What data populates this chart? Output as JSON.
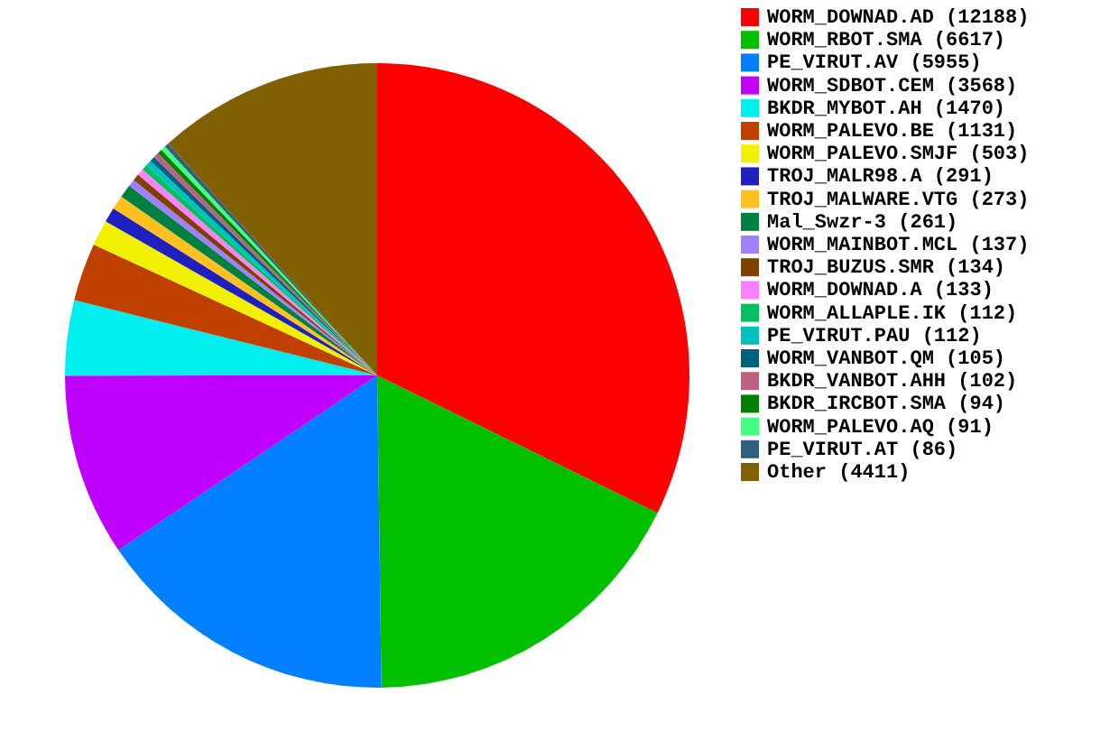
{
  "chart_data": {
    "type": "pie",
    "categories": [
      "WORM_DOWNAD.AD (12188)",
      "WORM_RBOT.SMA (6617)",
      "PE_VIRUT.AV (5955)",
      "WORM_SDBOT.CEM (3568)",
      "BKDR_MYBOT.AH (1470)",
      "WORM_PALEVO.BE (1131)",
      "WORM_PALEVO.SMJF (503)",
      "TROJ_MALR98.A (291)",
      "TROJ_MALWARE.VTG (273)",
      "Mal_Swzr-3 (261)",
      "WORM_MAINBOT.MCL (137)",
      "TROJ_BUZUS.SMR (134)",
      "WORM_DOWNAD.A (133)",
      "WORM_ALLAPLE.IK (112)",
      "PE_VIRUT.PAU (112)",
      "WORM_VANBOT.QM (105)",
      "BKDR_VANBOT.AHH (102)",
      "BKDR_IRCBOT.SMA (94)",
      "WORM_PALEVO.AQ (91)",
      "PE_VIRUT.AT (86)",
      "Other (4411)"
    ],
    "values": [
      12188,
      6617,
      5955,
      3568,
      1470,
      1131,
      503,
      291,
      273,
      261,
      137,
      134,
      133,
      112,
      112,
      105,
      102,
      94,
      91,
      86,
      4411
    ],
    "colors": [
      "#ff0000",
      "#00c000",
      "#0080ff",
      "#c000ff",
      "#00f0f0",
      "#c04000",
      "#f0f000",
      "#2020c0",
      "#ffc020",
      "#008040",
      "#a080ff",
      "#804000",
      "#ff80ff",
      "#00c060",
      "#00c0c0",
      "#006080",
      "#c06080",
      "#008000",
      "#40ff80",
      "#306080",
      "#806000"
    ],
    "legend": "right"
  }
}
